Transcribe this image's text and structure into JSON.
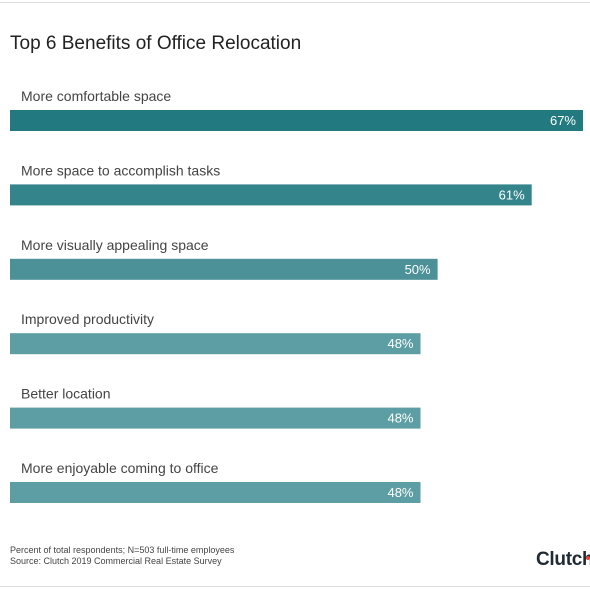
{
  "chart_data": {
    "type": "bar",
    "orientation": "horizontal",
    "title": "Top 6 Benefits of Office Relocation",
    "categories": [
      "More comfortable space",
      "More space to accomplish tasks",
      "More visually appealing space",
      "Improved productivity",
      "Better location",
      "More enjoyable coming to office"
    ],
    "values": [
      67,
      61,
      50,
      48,
      48,
      48
    ],
    "value_labels": [
      "67%",
      "61%",
      "50%",
      "48%",
      "48%",
      "48%"
    ],
    "colors": [
      "#22797f",
      "#33848b",
      "#4b9197",
      "#5c9ea4",
      "#5c9ea4",
      "#5c9ea4"
    ],
    "unit": "%",
    "grid": false,
    "legend": "none"
  },
  "footnote": {
    "line1": "Percent of total respondents; N=503 full-time employees",
    "line2": "Source: Clutch 2019 Commercial Real Estate Survey"
  },
  "brand": {
    "logo_text": "Clutch",
    "accent": "#e8462b"
  }
}
